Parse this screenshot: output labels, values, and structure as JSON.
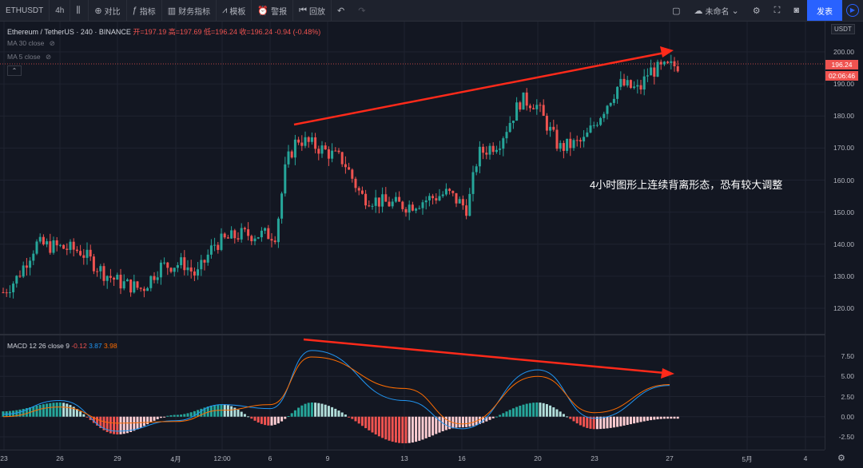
{
  "toolbar": {
    "symbol": "ETHUSDT",
    "interval": "4h",
    "compare": "对比",
    "indicators": "指标",
    "financials": "财务指标",
    "templates": "模板",
    "alert": "警报",
    "replay": "回放",
    "layout_name": "未命名",
    "publish": "发表"
  },
  "legend": {
    "pair": "Ethereum / TetherUS · 240 · BINANCE",
    "open_label": "开=197.19",
    "high_label": "高=197.69",
    "low_label": "低=196.24",
    "close_label": "收=196.24",
    "change": "-0.94 (-0.48%)",
    "ma30": "MA 30 close",
    "ma5": "MA 5 close"
  },
  "macd_legend": {
    "name": "MACD 12 26 close 9",
    "hist": "-0.12",
    "macd": "3.87",
    "signal": "3.98"
  },
  "price_axis": {
    "currency": "USDT",
    "labels": [
      "200.00",
      "190.00",
      "180.00",
      "170.00",
      "160.00",
      "150.00",
      "140.00",
      "130.00",
      "120.00"
    ],
    "last_price": "196.24",
    "countdown": "02:06:46"
  },
  "macd_axis": {
    "labels": [
      "7.50",
      "5.00",
      "2.50",
      "0.00",
      "-2.50"
    ]
  },
  "time_axis": {
    "labels": [
      "23",
      "26",
      "29",
      "4月",
      "12:00",
      "6",
      "9",
      "13",
      "16",
      "20",
      "23",
      "27",
      "5月",
      "4"
    ]
  },
  "annotation": "4小时图形上连续背离形态，恐有较大调整",
  "colors": {
    "up": "#26a69a",
    "down": "#ef5350",
    "arrow": "#ff2a1a",
    "macd_line": "#2196f3",
    "signal_line": "#ff6d00",
    "background": "#131722"
  },
  "chart_data": {
    "type": "candlestick",
    "x": [
      "23",
      "26",
      "29",
      "4月",
      "12:00",
      "6",
      "9",
      "13",
      "16",
      "20",
      "23",
      "27"
    ],
    "close_approx": [
      125,
      139,
      131,
      134,
      141,
      143,
      168,
      155,
      153,
      172,
      170,
      196.24
    ],
    "ylim": [
      115,
      203
    ],
    "macd": {
      "x": [
        "23",
        "26",
        "29",
        "4月",
        "12:00",
        "6",
        "9",
        "13",
        "16",
        "20",
        "23",
        "27"
      ],
      "macd": [
        0.3,
        2.0,
        -1.8,
        -0.5,
        1.5,
        1.0,
        8.2,
        2.0,
        -1.5,
        5.8,
        -0.2,
        3.87
      ],
      "signal": [
        0.0,
        1.2,
        -0.8,
        -0.6,
        0.8,
        1.5,
        7.4,
        3.5,
        -0.9,
        5.0,
        0.5,
        3.98
      ],
      "ylim": [
        -3,
        9
      ]
    }
  }
}
